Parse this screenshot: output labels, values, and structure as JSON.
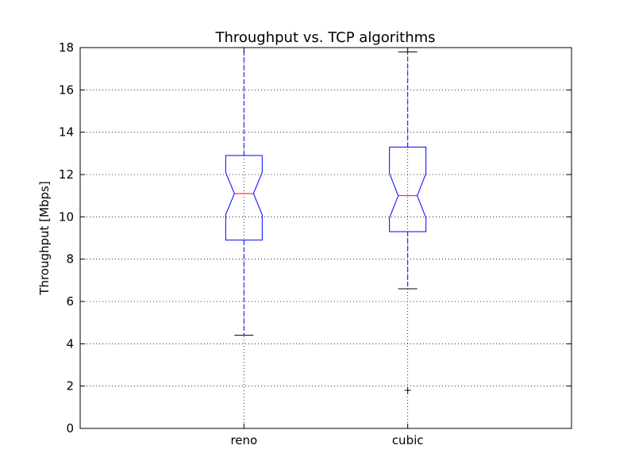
{
  "chart_data": {
    "type": "box",
    "title": "Throughput vs. TCP algorithms",
    "xlabel": "",
    "ylabel": "Throughput [Mbps]",
    "ylim": [
      0,
      18
    ],
    "yticks": [
      0,
      2,
      4,
      6,
      8,
      10,
      12,
      14,
      16,
      18
    ],
    "grid": true,
    "notched": true,
    "categories": [
      "reno",
      "cubic"
    ],
    "boxes": [
      {
        "name": "reno",
        "whisker_low": 4.4,
        "q1": 8.9,
        "median": 11.1,
        "q3": 12.9,
        "whisker_high": 18.0,
        "notch_low": 10.1,
        "notch_high": 12.1,
        "fliers": []
      },
      {
        "name": "cubic",
        "whisker_low": 6.6,
        "q1": 9.3,
        "median": 11.0,
        "q3": 13.3,
        "whisker_high": 17.8,
        "notch_low": 9.95,
        "notch_high": 12.05,
        "fliers": [
          1.8
        ]
      }
    ],
    "colors": {
      "box": "#0000ff",
      "median": "#ff0000",
      "whisker": "#0000ff",
      "cap": "#000000",
      "flier": "#000000"
    }
  }
}
